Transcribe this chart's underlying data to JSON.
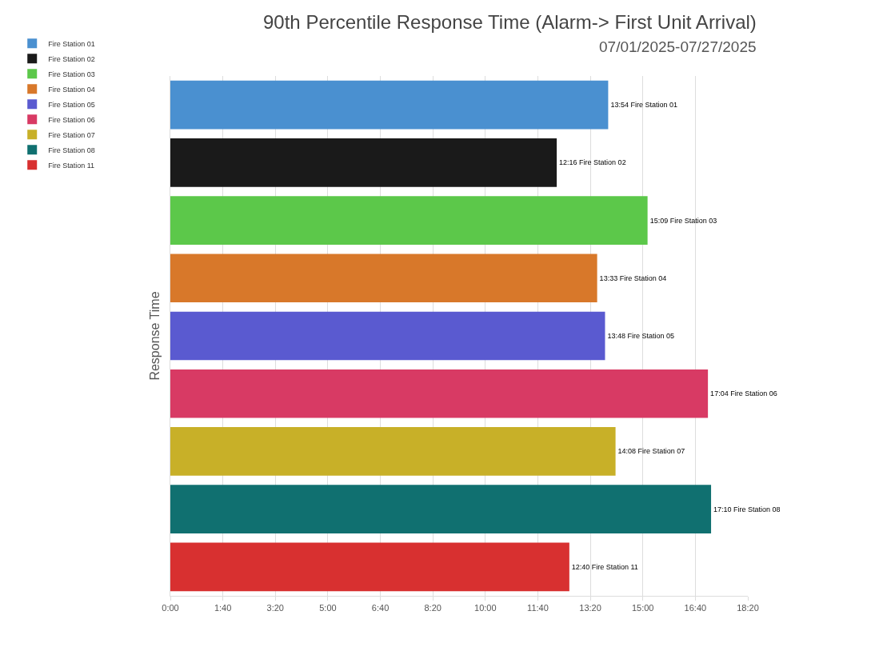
{
  "chart_data": {
    "type": "bar",
    "orientation": "horizontal",
    "title": "90th Percentile Response Time (Alarm-> First Unit Arrival)",
    "subtitle": "07/01/2025-07/27/2025",
    "ylabel": "Response Time",
    "categories": [
      null,
      null,
      null,
      null,
      null,
      null,
      null,
      null,
      null
    ],
    "series": [
      {
        "name": "Fire Station 01",
        "color": "#4a90d0",
        "values": [
          834,
          null,
          null,
          null,
          null,
          null,
          null,
          null,
          null
        ],
        "value_labels": [
          "13:54 Fire Station 01",
          null,
          null,
          null,
          null,
          null,
          null,
          null,
          null
        ]
      },
      {
        "name": "Fire Station 02",
        "color": "#1a1a1a",
        "values": [
          null,
          736,
          null,
          null,
          null,
          null,
          null,
          null,
          null
        ],
        "value_labels": [
          null,
          "12:16 Fire Station 02",
          null,
          null,
          null,
          null,
          null,
          null,
          null
        ]
      },
      {
        "name": "Fire Station 03",
        "color": "#5cc84a",
        "values": [
          null,
          null,
          909,
          null,
          null,
          null,
          null,
          null,
          null
        ],
        "value_labels": [
          null,
          null,
          "15:09 Fire Station 03",
          null,
          null,
          null,
          null,
          null,
          null
        ]
      },
      {
        "name": "Fire Station 04",
        "color": "#d8782a",
        "values": [
          null,
          null,
          null,
          813,
          null,
          null,
          null,
          null,
          null
        ],
        "value_labels": [
          null,
          null,
          null,
          "13:33 Fire Station 04",
          null,
          null,
          null,
          null,
          null
        ]
      },
      {
        "name": "Fire Station 05",
        "color": "#5a5ad0",
        "values": [
          null,
          null,
          null,
          null,
          828,
          null,
          null,
          null,
          null
        ],
        "value_labels": [
          null,
          null,
          null,
          null,
          "13:48 Fire Station 05",
          null,
          null,
          null,
          null
        ]
      },
      {
        "name": "Fire Station 06",
        "color": "#d83a64",
        "values": [
          null,
          null,
          null,
          null,
          null,
          1024,
          null,
          null,
          null
        ],
        "value_labels": [
          null,
          null,
          null,
          null,
          null,
          "17:04 Fire Station 06",
          null,
          null,
          null
        ]
      },
      {
        "name": "Fire Station 07",
        "color": "#c8b028",
        "values": [
          null,
          null,
          null,
          null,
          null,
          null,
          848,
          null,
          null
        ],
        "value_labels": [
          null,
          null,
          null,
          null,
          null,
          null,
          "14:08 Fire Station 07",
          null,
          null
        ]
      },
      {
        "name": "Fire Station 08",
        "color": "#107070",
        "values": [
          null,
          null,
          null,
          null,
          null,
          null,
          null,
          1030,
          null
        ],
        "value_labels": [
          null,
          null,
          null,
          null,
          null,
          null,
          null,
          "17:10 Fire Station 08",
          null
        ]
      },
      {
        "name": "Fire Station 11",
        "color": "#d83030",
        "values": [
          null,
          null,
          null,
          null,
          null,
          null,
          null,
          null,
          760
        ],
        "value_labels": [
          null,
          null,
          null,
          null,
          null,
          null,
          null,
          null,
          "12:40 Fire Station 11"
        ]
      }
    ],
    "xlim": [
      0,
      1100
    ],
    "xticks": [
      {
        "value": 0,
        "label": "0:00"
      },
      {
        "value": 100,
        "label": "1:40"
      },
      {
        "value": 200,
        "label": "3:20"
      },
      {
        "value": 300,
        "label": "5:00"
      },
      {
        "value": 400,
        "label": "6:40"
      },
      {
        "value": 500,
        "label": "8:20"
      },
      {
        "value": 600,
        "label": "10:00"
      },
      {
        "value": 700,
        "label": "11:40"
      },
      {
        "value": 800,
        "label": "13:20"
      },
      {
        "value": 900,
        "label": "15:00"
      },
      {
        "value": 1000,
        "label": "16:40"
      },
      {
        "value": 1100,
        "label": "18:20"
      }
    ],
    "grid": "x",
    "legend": "top left",
    "tick_labels": "x"
  }
}
